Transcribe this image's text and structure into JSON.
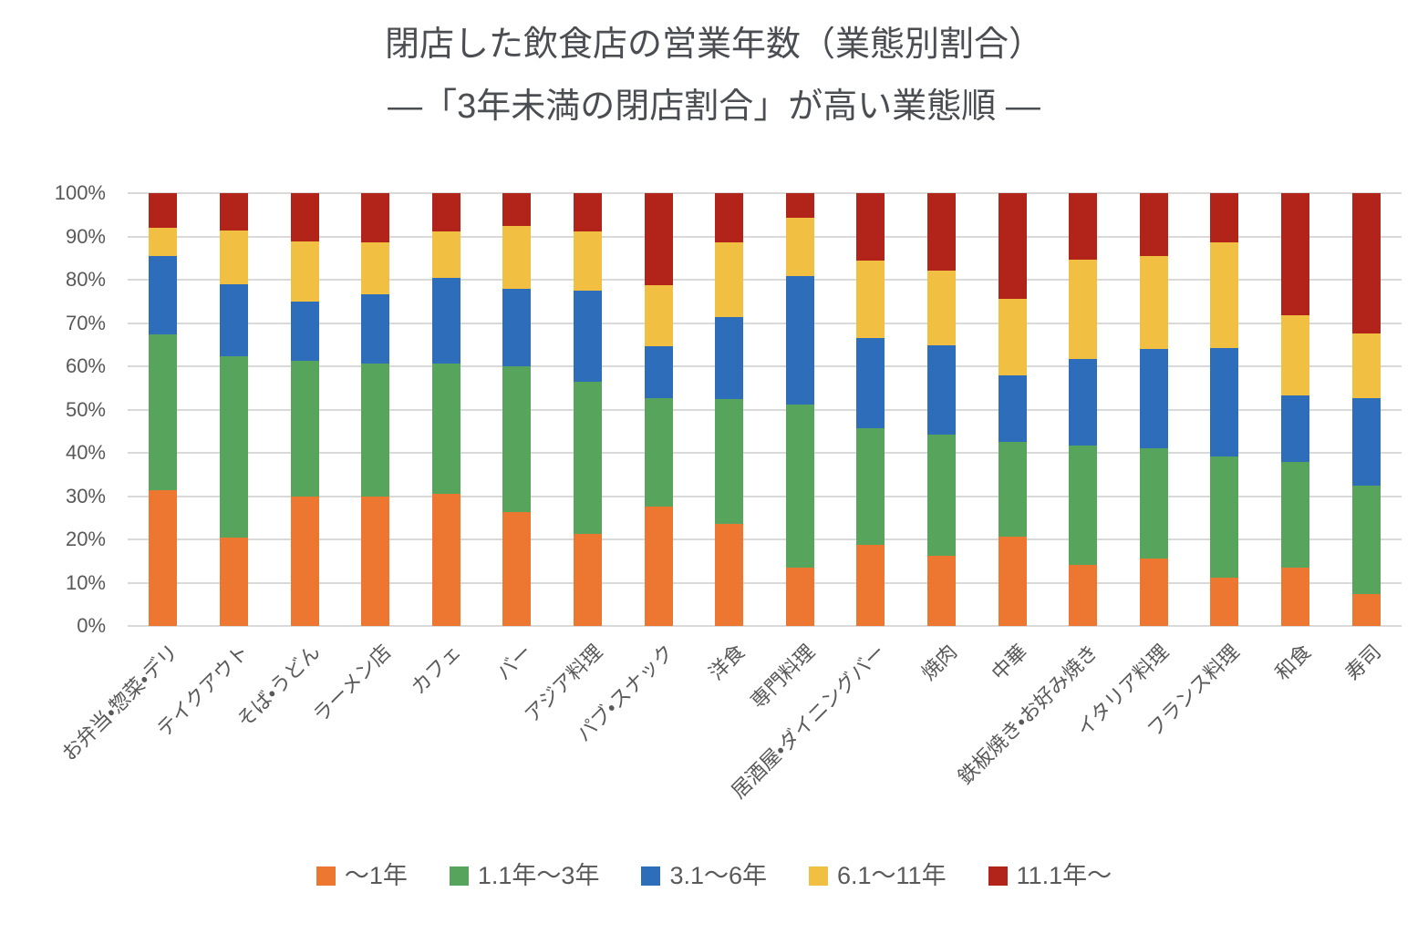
{
  "colors": {
    "grid": "#d9d9d9",
    "axis_text": "#595959",
    "title_text": "#4a4d52",
    "background": "#ffffff"
  },
  "chart_data": {
    "type": "bar",
    "stacked": true,
    "unit": "%",
    "title": "閉店した飲食店の営業年数（業態別割合）",
    "subtitle": "―「3年未満の閉店割合」が高い業態順 ―",
    "grid": true,
    "legend_position": "bottom",
    "ylim": [
      0,
      100
    ],
    "y_tick_step": 10,
    "y_ticks": [
      "0%",
      "10%",
      "20%",
      "30%",
      "40%",
      "50%",
      "60%",
      "70%",
      "80%",
      "90%",
      "100%"
    ],
    "categories": [
      "お弁当・惣菜・デリ",
      "テイクアウト",
      "そば・うどん",
      "ラーメン店",
      "カフェ",
      "バー",
      "アジア料理",
      "パブ・スナック",
      "洋食",
      "専門料理",
      "居酒屋・ダイニングバー",
      "焼肉",
      "中華",
      "鉄板焼き・お好み焼き",
      "イタリア料理",
      "フランス料理",
      "和食",
      "寿司"
    ],
    "series": [
      {
        "name": "～1年",
        "color": "#ED7630",
        "values": [
          31.4,
          20.4,
          29.9,
          29.9,
          30.6,
          26.4,
          21.3,
          27.6,
          23.6,
          13.4,
          18.8,
          16.3,
          20.6,
          14.1,
          15.5,
          11.1,
          13.4,
          7.3
        ]
      },
      {
        "name": "1.1年～3年",
        "color": "#57A55C",
        "values": [
          36.0,
          41.9,
          31.3,
          30.8,
          30.0,
          33.6,
          35.1,
          25.1,
          28.8,
          37.8,
          26.9,
          27.9,
          21.9,
          27.5,
          25.6,
          28.1,
          24.6,
          25.2
        ]
      },
      {
        "name": "3.1～6年",
        "color": "#2E6DB9",
        "values": [
          18.0,
          16.6,
          13.8,
          16.0,
          19.9,
          17.9,
          21.1,
          12.0,
          19.0,
          29.7,
          20.9,
          20.6,
          15.3,
          20.1,
          23.0,
          25.1,
          15.3,
          20.1
        ]
      },
      {
        "name": "6.1～11年",
        "color": "#F1BF41",
        "values": [
          6.7,
          12.4,
          13.8,
          12.0,
          10.6,
          14.6,
          13.7,
          14.1,
          17.3,
          13.5,
          17.8,
          17.3,
          17.7,
          22.9,
          21.3,
          24.4,
          18.4,
          14.9
        ]
      },
      {
        "name": "11.1年～",
        "color": "#B2241A",
        "values": [
          7.9,
          8.7,
          11.2,
          11.3,
          8.9,
          7.5,
          8.8,
          21.2,
          11.3,
          5.6,
          15.6,
          17.9,
          24.5,
          15.4,
          14.6,
          11.3,
          28.3,
          32.5
        ]
      }
    ]
  }
}
